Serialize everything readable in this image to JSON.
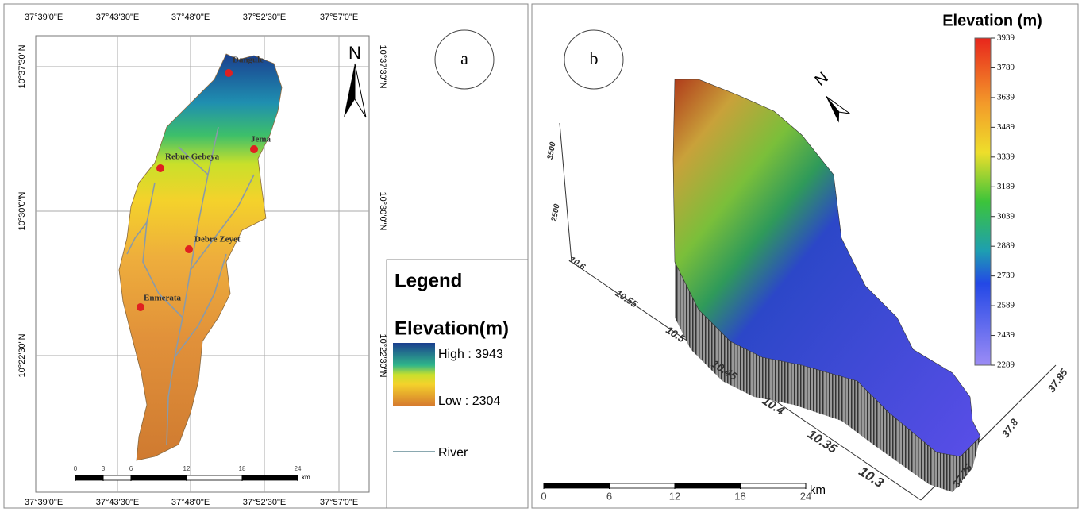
{
  "panel_a": {
    "label": "a",
    "north": "N",
    "lon_labels": [
      "37°39'0\"E",
      "37°43'30\"E",
      "37°48'0\"E",
      "37°52'30\"E",
      "37°57'0\"E"
    ],
    "lat_labels": [
      "10°37'30\"N",
      "10°30'0\"N",
      "10°22'30\"N"
    ],
    "places": [
      {
        "name": "Dangule"
      },
      {
        "name": "Jema"
      },
      {
        "name": "Rebue Gebeya"
      },
      {
        "name": "Debre Zeyet"
      },
      {
        "name": "Enmerata"
      }
    ],
    "legend": {
      "title": "Legend",
      "subtitle": "Elevation(m)",
      "high": "High : 3943",
      "low": "Low : 2304",
      "river": "River"
    },
    "scale_bar": {
      "ticks": [
        0,
        3,
        6,
        12,
        18,
        24
      ],
      "unit": "km"
    }
  },
  "panel_b": {
    "label": "b",
    "title": "Elevation (m)",
    "north": "N",
    "colorbar_ticks": [
      3939,
      3789,
      3639,
      3489,
      3339,
      3189,
      3039,
      2889,
      2739,
      2589,
      2439,
      2289
    ],
    "lat_ticks": [
      10.6,
      10.55,
      10.5,
      10.45,
      10.4,
      10.35,
      10.3
    ],
    "lon_ticks": [
      37.75,
      37.8,
      37.85
    ],
    "z_ticks": [
      3500,
      2500
    ],
    "scale_bar": {
      "ticks": [
        0,
        6,
        12,
        18,
        24
      ],
      "unit": "km"
    }
  }
}
